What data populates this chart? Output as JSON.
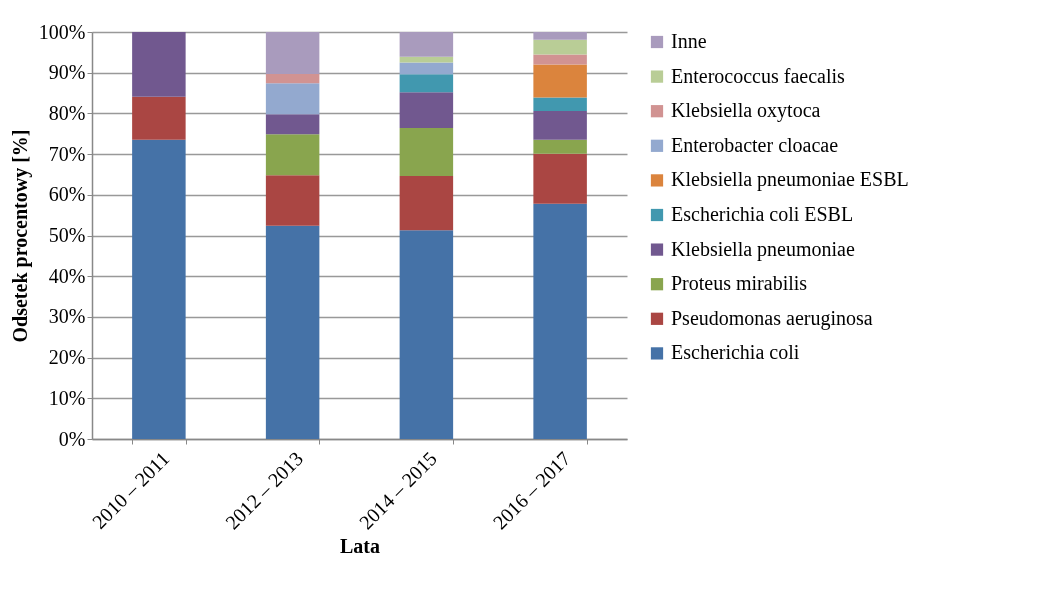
{
  "chart_data": {
    "type": "bar",
    "stacked": true,
    "xlabel": "Lata",
    "ylabel": "Odsetek procentowy [%]",
    "categories": [
      "2010 – 2011",
      "2012 – 2013",
      "2014 – 2015",
      "2016 – 2017"
    ],
    "ylim": [
      0,
      100
    ],
    "yticks": [
      {
        "value": 0,
        "label": "0%"
      },
      {
        "value": 10,
        "label": "10%"
      },
      {
        "value": 20,
        "label": "20%"
      },
      {
        "value": 30,
        "label": "30%"
      },
      {
        "value": 40,
        "label": "40%"
      },
      {
        "value": 50,
        "label": "50%"
      },
      {
        "value": 60,
        "label": "60%"
      },
      {
        "value": 70,
        "label": "70%"
      },
      {
        "value": 80,
        "label": "80%"
      },
      {
        "value": 90,
        "label": "90%"
      },
      {
        "value": 100,
        "label": "100%"
      }
    ],
    "grid": "y",
    "legend": "right",
    "series": [
      {
        "name": "Escherichia coli",
        "color": "#4572a7",
        "values": [
          73.5,
          52.4,
          51.3,
          57.8
        ]
      },
      {
        "name": "Pseudomonas aeruginosa",
        "color": "#aa4643",
        "values": [
          10.6,
          12.4,
          13.3,
          12.3
        ]
      },
      {
        "name": "Proteus mirabilis",
        "color": "#89a54e",
        "values": [
          null,
          10.1,
          11.8,
          3.4
        ]
      },
      {
        "name": "Klebsiella pneumoniae",
        "color": "#71588f",
        "values": [
          15.9,
          4.9,
          8.8,
          7.1
        ]
      },
      {
        "name": "Escherichia coli ESBL",
        "color": "#4198af",
        "values": [
          null,
          null,
          4.4,
          3.3
        ]
      },
      {
        "name": "Klebsiella pneumoniae ESBL",
        "color": "#db843d",
        "values": [
          null,
          null,
          null,
          8.1
        ]
      },
      {
        "name": "Enterobacter cloacae",
        "color": "#93a9cf",
        "values": [
          null,
          7.6,
          2.9,
          null
        ]
      },
      {
        "name": "Klebsiella oxytoca",
        "color": "#d19392",
        "values": [
          null,
          2.3,
          null,
          2.5
        ]
      },
      {
        "name": "Enterococcus faecalis",
        "color": "#b9cd96",
        "values": [
          null,
          null,
          1.4,
          3.6
        ]
      },
      {
        "name": "Inne",
        "color": "#a99bbd",
        "values": [
          null,
          10.3,
          6.1,
          1.9
        ]
      }
    ]
  }
}
